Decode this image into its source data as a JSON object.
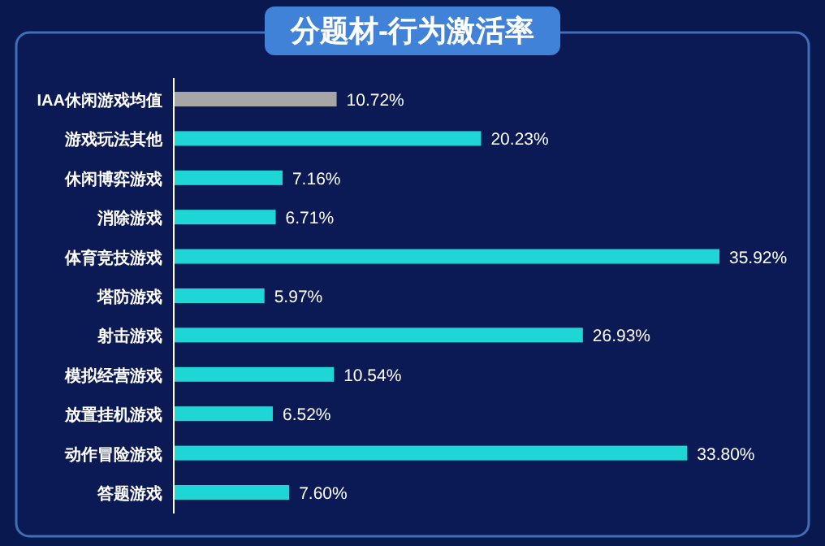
{
  "chart_data": {
    "type": "bar",
    "orientation": "horizontal",
    "title": "分题材-行为激活率",
    "categories": [
      "IAA休闲游戏均值",
      "游戏玩法其他",
      "休闲博弈游戏",
      "消除游戏",
      "体育竞技游戏",
      "塔防游戏",
      "射击游戏",
      "模拟经营游戏",
      "放置挂机游戏",
      "动作冒险游戏",
      "答题游戏"
    ],
    "values": [
      10.72,
      20.23,
      7.16,
      6.71,
      35.92,
      5.97,
      26.93,
      10.54,
      6.52,
      33.8,
      7.6
    ],
    "value_labels": [
      "10.72%",
      "20.23%",
      "7.16%",
      "6.71%",
      "35.92%",
      "5.97%",
      "26.93%",
      "10.54%",
      "6.52%",
      "33.80%",
      "7.60%"
    ],
    "colors": [
      "#a6a6a6",
      "#1fd6d6",
      "#1fd6d6",
      "#1fd6d6",
      "#1fd6d6",
      "#1fd6d6",
      "#1fd6d6",
      "#1fd6d6",
      "#1fd6d6",
      "#1fd6d6",
      "#1fd6d6"
    ]
  }
}
